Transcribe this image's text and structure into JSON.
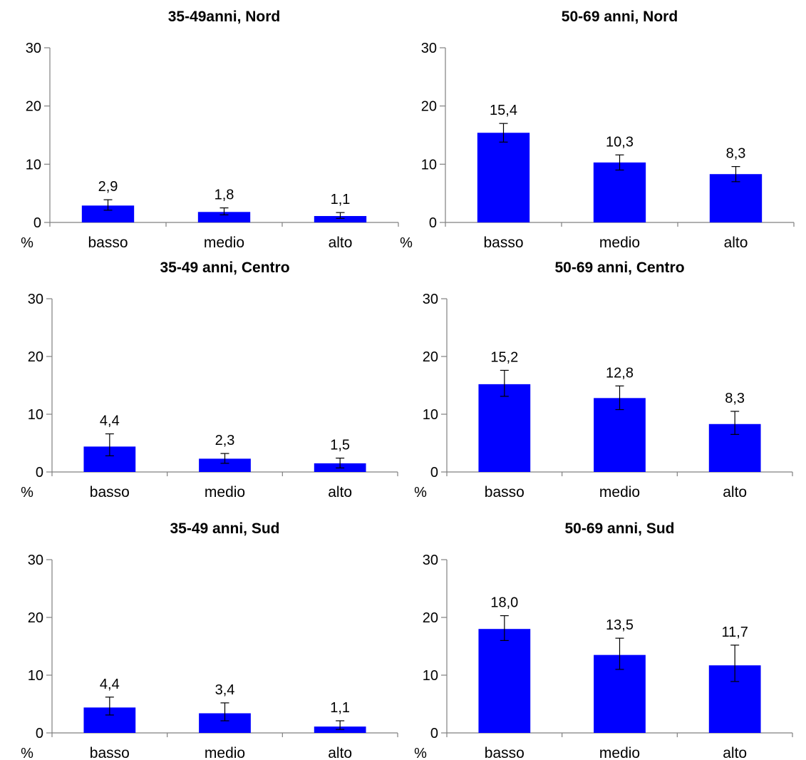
{
  "colors": {
    "bar": "#0000ff",
    "axis": "#808080",
    "errorbar": "#000000",
    "text": "#000000"
  },
  "chart_data": [
    {
      "type": "bar",
      "title": "35-49anni, Nord",
      "ylabel": "%",
      "ylim": [
        0,
        30
      ],
      "yticks": [
        "0",
        "10",
        "20",
        "30"
      ],
      "categories": [
        "basso",
        "medio",
        "alto"
      ],
      "values": [
        2.9,
        1.8,
        1.1
      ],
      "value_labels": [
        "2,9",
        "1,8",
        "1,1"
      ],
      "error_low": [
        2.1,
        1.3,
        0.7
      ],
      "error_high": [
        3.9,
        2.5,
        1.7
      ],
      "grid": false
    },
    {
      "type": "bar",
      "title": "50-69 anni, Nord",
      "ylabel": "%",
      "ylim": [
        0,
        30
      ],
      "yticks": [
        "0",
        "10",
        "20",
        "30"
      ],
      "categories": [
        "basso",
        "medio",
        "alto"
      ],
      "values": [
        15.4,
        10.3,
        8.3
      ],
      "value_labels": [
        "15,4",
        "10,3",
        "8,3"
      ],
      "error_low": [
        13.8,
        9.0,
        7.0
      ],
      "error_high": [
        17.0,
        11.6,
        9.6
      ],
      "grid": false
    },
    {
      "type": "bar",
      "title": "35-49 anni, Centro",
      "ylabel": "%",
      "ylim": [
        0,
        30
      ],
      "yticks": [
        "0",
        "10",
        "20",
        "30"
      ],
      "categories": [
        "basso",
        "medio",
        "alto"
      ],
      "values": [
        4.4,
        2.3,
        1.5
      ],
      "value_labels": [
        "4,4",
        "2,3",
        "1,5"
      ],
      "error_low": [
        2.8,
        1.5,
        0.7
      ],
      "error_high": [
        6.6,
        3.2,
        2.4
      ],
      "grid": false
    },
    {
      "type": "bar",
      "title": "50-69 anni, Centro",
      "ylabel": "%",
      "ylim": [
        0,
        30
      ],
      "yticks": [
        "0",
        "10",
        "20",
        "30"
      ],
      "categories": [
        "basso",
        "medio",
        "alto"
      ],
      "values": [
        15.2,
        12.8,
        8.3
      ],
      "value_labels": [
        "15,2",
        "12,8",
        "8,3"
      ],
      "error_low": [
        13.1,
        10.8,
        6.5
      ],
      "error_high": [
        17.6,
        14.9,
        10.5
      ],
      "grid": false
    },
    {
      "type": "bar",
      "title": "35-49 anni, Sud",
      "ylabel": "%",
      "ylim": [
        0,
        30
      ],
      "yticks": [
        "0",
        "10",
        "20",
        "30"
      ],
      "categories": [
        "basso",
        "medio",
        "alto"
      ],
      "values": [
        4.4,
        3.4,
        1.1
      ],
      "value_labels": [
        "4,4",
        "3,4",
        "1,1"
      ],
      "error_low": [
        3.1,
        2.1,
        0.6
      ],
      "error_high": [
        6.2,
        5.2,
        2.1
      ],
      "grid": false
    },
    {
      "type": "bar",
      "title": "50-69 anni, Sud",
      "ylabel": "%",
      "ylim": [
        0,
        30
      ],
      "yticks": [
        "0",
        "10",
        "20",
        "30"
      ],
      "categories": [
        "basso",
        "medio",
        "alto"
      ],
      "values": [
        18.0,
        13.5,
        11.7
      ],
      "value_labels": [
        "18,0",
        "13,5",
        "11,7"
      ],
      "error_low": [
        16.0,
        11.0,
        8.9
      ],
      "error_high": [
        20.3,
        16.4,
        15.2
      ],
      "grid": false
    }
  ]
}
